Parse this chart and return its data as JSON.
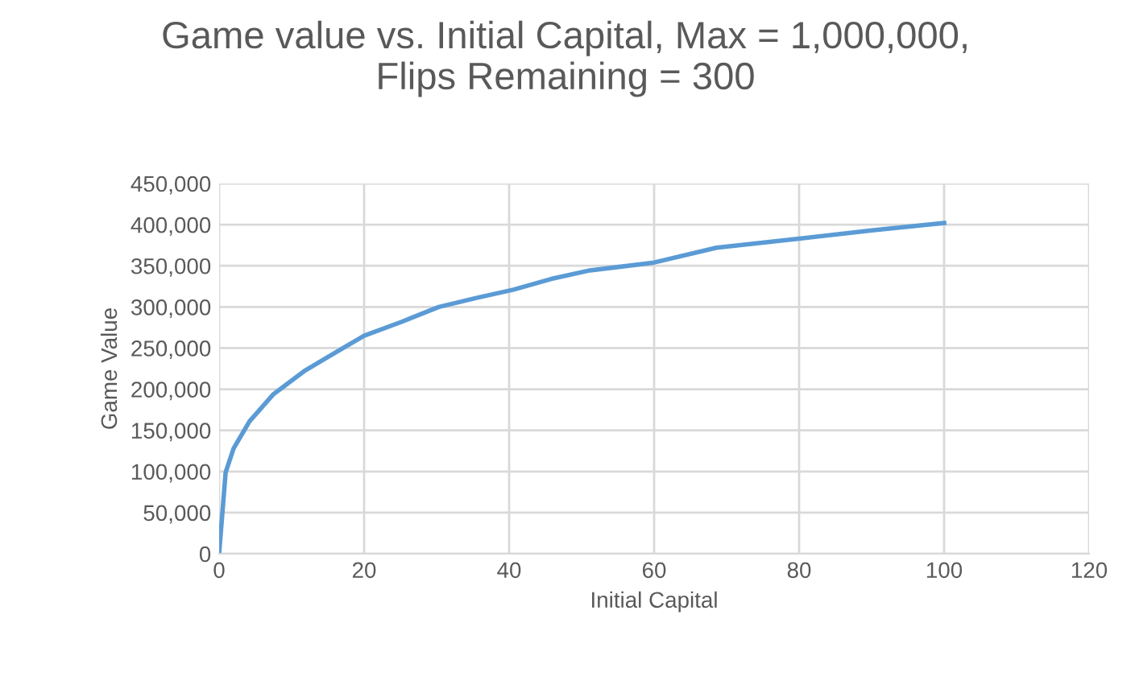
{
  "chart_data": {
    "type": "line",
    "title": "Game value vs. Initial Capital, Max = 1,000,000,\nFlips Remaining = 300",
    "xlabel": "Initial Capital",
    "ylabel": "Game Value",
    "series": [
      {
        "color": "#5b9bd5",
        "x": [
          0,
          0.9,
          2,
          4.2,
          7.5,
          11.9,
          16.3,
          20,
          25.2,
          30.3,
          35.5,
          40.6,
          45.8,
          50.9,
          60,
          68.6,
          80,
          90,
          100
        ],
        "values": [
          0,
          99000,
          128000,
          161000,
          194000,
          223000,
          246000,
          265000,
          282000,
          300000,
          311000,
          321000,
          334000,
          344000,
          354000,
          372000,
          383000,
          393000,
          402000
        ]
      }
    ],
    "xlim": [
      0,
      120
    ],
    "xticks": [
      0,
      20,
      40,
      60,
      80,
      100,
      120
    ],
    "ylim": [
      0,
      450000
    ],
    "yticks": [
      {
        "value": 0,
        "label": "0"
      },
      {
        "value": 50000,
        "label": "50,000"
      },
      {
        "value": 100000,
        "label": "100,000"
      },
      {
        "value": 150000,
        "label": "150,000"
      },
      {
        "value": 200000,
        "label": "200,000"
      },
      {
        "value": 250000,
        "label": "250,000"
      },
      {
        "value": 300000,
        "label": "300,000"
      },
      {
        "value": 350000,
        "label": "350,000"
      },
      {
        "value": 400000,
        "label": "400,000"
      },
      {
        "value": 450000,
        "label": "450,000"
      }
    ],
    "grid": true,
    "marker": "none",
    "line_style": "solid"
  }
}
